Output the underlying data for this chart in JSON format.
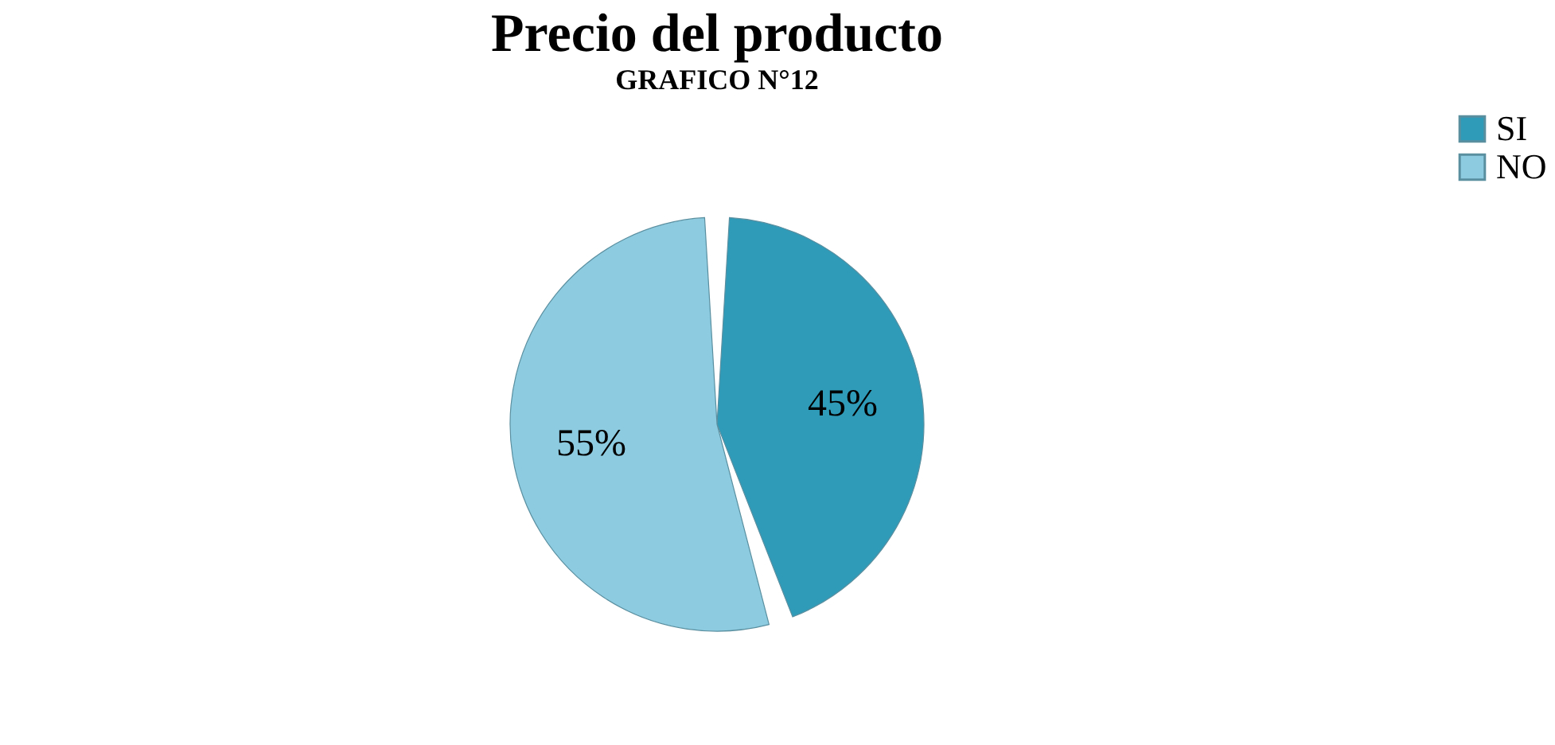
{
  "chart_data": {
    "type": "pie",
    "title": "Precio del producto",
    "annotations": [
      "GRAFICO N°12"
    ],
    "categories": [
      "SI",
      "NO"
    ],
    "values": [
      45,
      55
    ],
    "colors": [
      "#2f9bb8",
      "#8ccbe0"
    ],
    "value_labels": [
      "45%",
      "55%"
    ],
    "legend": "right"
  }
}
